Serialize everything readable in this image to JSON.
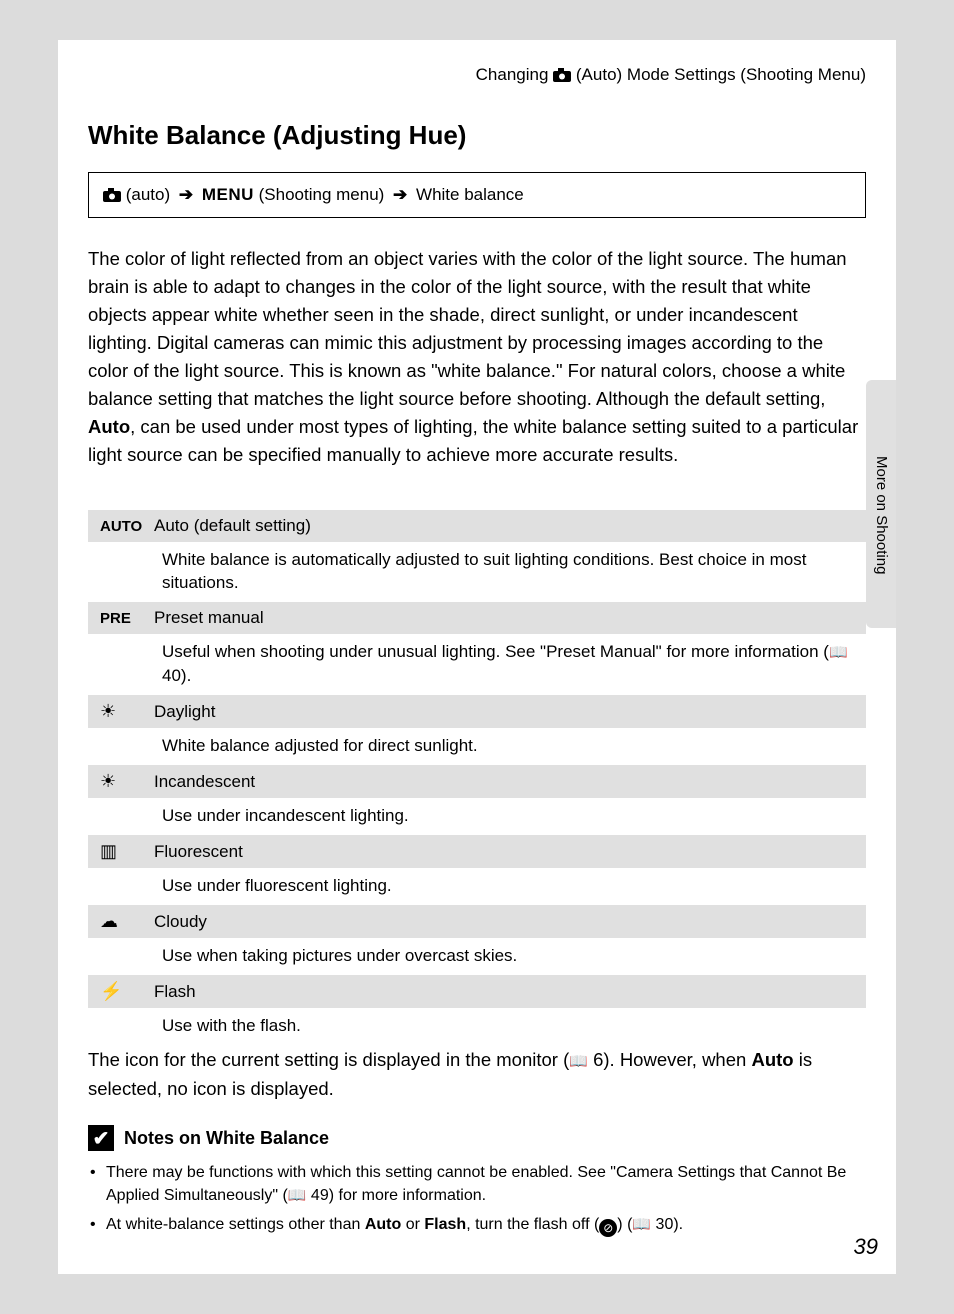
{
  "header": {
    "prefix": "Changing ",
    "mode_label": " (Auto) Mode Settings (Shooting Menu)"
  },
  "section_title": "White Balance (Adjusting Hue)",
  "nav": {
    "auto": " (auto) ",
    "menu": "MENU",
    "shooting": " (Shooting menu)  ",
    "target": " White balance"
  },
  "intro": {
    "p1a": "The color of light reflected from an object varies with the color of the light source. The human brain is able to adapt to changes in the color of the light source, with the result that white objects appear white whether seen in the shade, direct sunlight, or under incandescent lighting. Digital cameras can mimic this adjustment by processing images according to the color of the light source. This is known as \"white balance.\" For natural colors, choose a white balance setting that matches the light source before shooting. Although the default setting, ",
    "auto_word": "Auto",
    "p1b": ", can be used under most types of lighting, the white balance setting suited to a particular light source can be specified manually to achieve more accurate results."
  },
  "wb": [
    {
      "icon_text": "AUTO",
      "icon_type": "text",
      "label": "Auto (default setting)",
      "desc_a": "White balance is automatically adjusted to suit lighting conditions. Best choice in most situations.",
      "page_ref": ""
    },
    {
      "icon_text": "PRE",
      "icon_type": "text",
      "label": "Preset manual",
      "desc_a": "Useful when shooting under unusual lighting. See \"Preset Manual\" for more information (",
      "page_ref": " 40)."
    },
    {
      "icon_text": "☀",
      "icon_type": "sym",
      "label": "Daylight",
      "desc_a": "White balance adjusted for direct sunlight.",
      "page_ref": ""
    },
    {
      "icon_text": "☀",
      "icon_type": "sym",
      "label": "Incandescent",
      "desc_a": "Use under incandescent lighting.",
      "page_ref": ""
    },
    {
      "icon_text": "▥",
      "icon_type": "sym",
      "label": "Fluorescent",
      "desc_a": "Use under fluorescent lighting.",
      "page_ref": ""
    },
    {
      "icon_text": "☁",
      "icon_type": "sym",
      "label": "Cloudy",
      "desc_a": "Use when taking pictures under overcast skies.",
      "page_ref": ""
    },
    {
      "icon_text": "⚡",
      "icon_type": "sym",
      "label": "Flash",
      "desc_a": "Use with the flash.",
      "page_ref": ""
    }
  ],
  "post": {
    "a": "The icon for the current setting is displayed in the monitor (",
    "ref": " 6",
    "b": "). However, when ",
    "auto": "Auto",
    "c": " is selected, no icon is displayed."
  },
  "notes": {
    "title": "Notes on White Balance",
    "items": [
      {
        "a": "There may be functions with which this setting cannot be enabled. See \"Camera Settings that Cannot Be Applied Simultaneously\" (",
        "ref": " 49",
        "b": ") for more information."
      },
      {
        "a": "At white-balance settings other than ",
        "b1": "Auto",
        "mid": " or ",
        "b2": "Flash",
        "c": ", turn the flash off (",
        "flash_glyph": "⊘",
        "d": ") (",
        "ref": " 30",
        "e": ")."
      }
    ]
  },
  "side_label": "More on Shooting",
  "page_number": "39",
  "colors": {
    "page_bg": "#ffffff",
    "body_bg": "#dcdcdc",
    "row_shade": "#e0e0e0"
  }
}
